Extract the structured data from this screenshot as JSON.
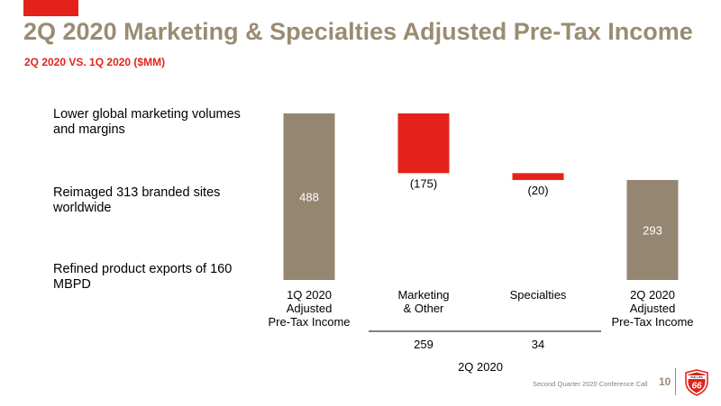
{
  "header": {
    "title": "2Q 2020 Marketing & Specialties Adjusted Pre-Tax Income",
    "subtitle": "2Q 2020 VS. 1Q 2020 ($MM)"
  },
  "bullets": [
    "Lower global marketing volumes and margins",
    "Reimaged 313 branded sites worldwide",
    "Refined product exports of 160 MBPD"
  ],
  "chart_data": {
    "type": "bar",
    "subtype": "waterfall",
    "categories": [
      [
        "1Q 2020",
        "Adjusted",
        "Pre-Tax Income"
      ],
      [
        "Marketing",
        "& Other"
      ],
      [
        "Specialties"
      ],
      [
        "2Q 2020",
        "Adjusted",
        "Pre-Tax Income"
      ]
    ],
    "values": [
      488,
      -175,
      -20,
      293
    ],
    "value_labels": [
      "488",
      "(175)",
      "(20)",
      "293"
    ],
    "kinds": [
      "total",
      "delta",
      "delta",
      "total"
    ],
    "ylim": [
      0,
      500
    ],
    "segment_values": [
      "259",
      "34"
    ],
    "segment_label": "2Q 2020",
    "colors": {
      "total": "#948671",
      "negative": "#e3231b"
    }
  },
  "footer": {
    "text": "Second Quarter 2020 Conference Call",
    "page": "10"
  },
  "logo": {
    "icon": "phillips66-shield-icon",
    "top_text": "PHILLIPS",
    "number": "66"
  }
}
